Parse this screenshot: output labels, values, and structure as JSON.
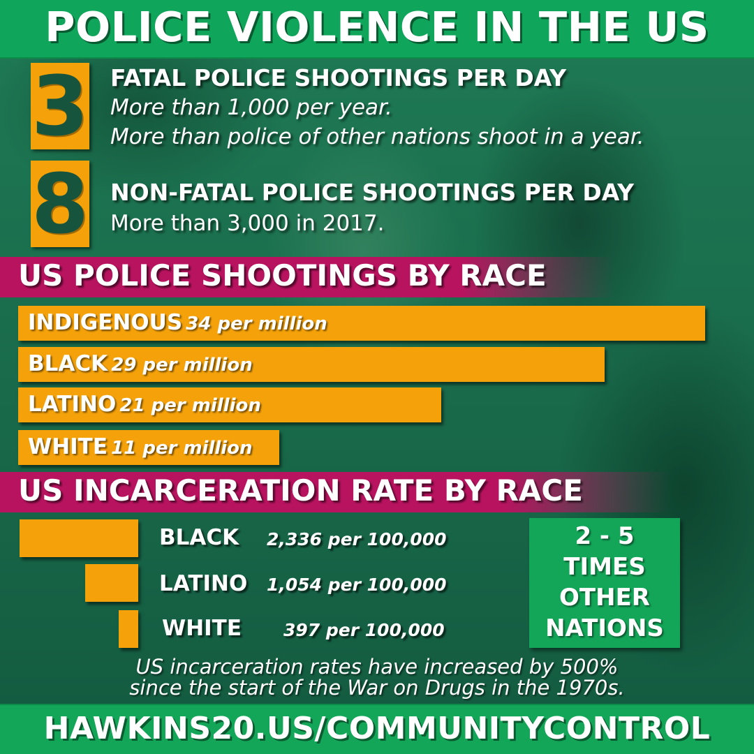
{
  "title": "POLICE VIOLENCE IN THE US",
  "stats": [
    {
      "number": "3",
      "title": "FATAL POLICE SHOOTINGS PER DAY",
      "lines": [
        "More than 1,000 per year.",
        "More than police of other nations shoot in a year."
      ]
    },
    {
      "number": "8",
      "title": "NON-FATAL POLICE SHOOTINGS PER DAY",
      "lines": [
        "More than 3,000 in 2017."
      ]
    }
  ],
  "shootings_section": {
    "heading": "US POLICE SHOOTINGS BY RACE",
    "unit": "per million",
    "rows": [
      {
        "race": "INDIGENOUS",
        "value_text": "34 per million",
        "value": 34
      },
      {
        "race": "BLACK",
        "value_text": "29 per million",
        "value": 29
      },
      {
        "race": "LATINO",
        "value_text": "21 per million",
        "value": 21
      },
      {
        "race": "WHITE",
        "value_text": "11 per million",
        "value": 11
      }
    ]
  },
  "incarceration_section": {
    "heading": "US INCARCERATION RATE BY RACE",
    "rows": [
      {
        "race": "BLACK",
        "value_text": "2,336 per 100,000",
        "value": 2336
      },
      {
        "race": "LATINO",
        "value_text": "1,054 per 100,000",
        "value": 1054
      },
      {
        "race": "WHITE",
        "value_text": "397 per 100,000",
        "value": 397
      }
    ],
    "callout": [
      "2 - 5",
      "TIMES",
      "OTHER",
      "NATIONS"
    ],
    "note": [
      "US incarceration rates have increased by 500%",
      "since the start of the War on Drugs in the 1970s."
    ]
  },
  "footer": "HAWKINS20.US/COMMUNITYCONTROL",
  "colors": {
    "orange": "#f5a20a",
    "header_green": "#0fa55a",
    "band_magenta": "#b8135f",
    "background_green": "#1a6e4d"
  }
}
